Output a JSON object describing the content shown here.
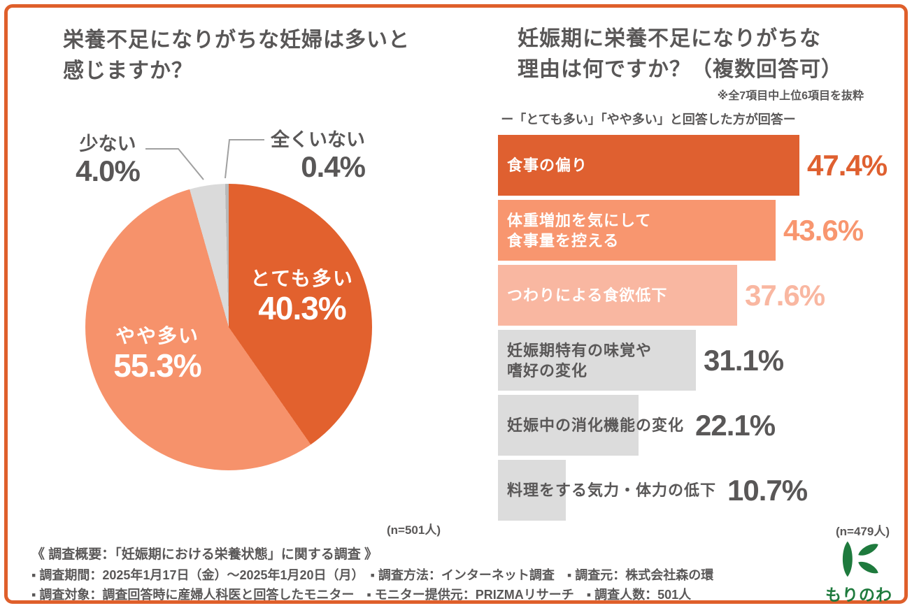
{
  "page": {
    "background": "#ffffff",
    "border_color": "#df5f2b",
    "text_gray": "#595757"
  },
  "left_chart": {
    "title_line1": "栄養不足になりがちな妊婦は多いと",
    "title_line2": "感じますか？",
    "n_label": "(n=501人)"
  },
  "right_chart": {
    "title_line1": "妊娠期に栄養不足になりがちな",
    "title_line2": "理由は何ですか？（複数回答可）",
    "note": "※全7項目中上位6項目を抜粋",
    "subtitle": "ー「とても多い」「やや多い」と回答した方が回答ー",
    "n_label": "(n=479人)"
  },
  "chart_data": [
    {
      "type": "pie",
      "title": "栄養不足になりがちな妊婦は多いと感じますか？",
      "n": 501,
      "start_angle": "top",
      "direction": "clockwise",
      "slices": [
        {
          "label": "とても多い",
          "value": 40.3,
          "display": "40.3%",
          "color": "#e2612e",
          "label_placement": "inside"
        },
        {
          "label": "やや多い",
          "value": 55.3,
          "display": "55.3%",
          "color": "#f6926b",
          "label_placement": "inside"
        },
        {
          "label": "少ない",
          "value": 4.0,
          "display": "4.0%",
          "color": "#dadada",
          "label_placement": "outside"
        },
        {
          "label": "全くいない",
          "value": 0.4,
          "display": "0.4%",
          "color": "#b9b9b9",
          "label_placement": "outside"
        }
      ]
    },
    {
      "type": "bar",
      "orientation": "horizontal",
      "title": "妊娠期に栄養不足になりがちな理由は何ですか？（複数回答可）",
      "n": 479,
      "xlim": [
        0,
        50
      ],
      "bars": [
        {
          "label": "食事の偏り",
          "value": 47.4,
          "display": "47.4%",
          "bar_color": "#df6030",
          "label_color": "#ffffff",
          "value_color": "#df6030"
        },
        {
          "label": "体重増加を気にして\n食事量を控える",
          "value": 43.6,
          "display": "43.6%",
          "bar_color": "#f8966f",
          "label_color": "#ffffff",
          "value_color": "#f8966f"
        },
        {
          "label": "つわりによる食欲低下",
          "value": 37.6,
          "display": "37.6%",
          "bar_color": "#f9b7a1",
          "label_color": "#ffffff",
          "value_color": "#f9b7a1"
        },
        {
          "label": "妊娠期特有の味覚や\n嗜好の変化",
          "value": 31.1,
          "display": "31.1%",
          "bar_color": "#dcdcdc",
          "label_color": "#595757",
          "value_color": "#595757"
        },
        {
          "label": "妊娠中の消化機能の変化",
          "value": 22.1,
          "display": "22.1%",
          "bar_color": "#dcdcdc",
          "label_color": "#595757",
          "value_color": "#595757"
        },
        {
          "label": "料理をする気力・体力の低下",
          "value": 10.7,
          "display": "10.7%",
          "bar_color": "#dcdcdc",
          "label_color": "#595757",
          "value_color": "#595757"
        }
      ]
    }
  ],
  "footer": {
    "heading": "《 調査概要：「妊娠期における栄養状態」に関する調査 》",
    "line1": "▪ 調査期間：2025年1月17日（金）～2025年1月20日（月）　▪ 調査方法：インターネット調査　▪ 調査元：株式会社森の環",
    "line2": "▪ 調査対象：調査回答時に産婦人科医と回答したモニター　▪ モニター提供元：PRIZMAリサーチ　▪ 調査人数：501人"
  },
  "logo": {
    "text": "もりのわ",
    "color": "#1e7a3d"
  }
}
